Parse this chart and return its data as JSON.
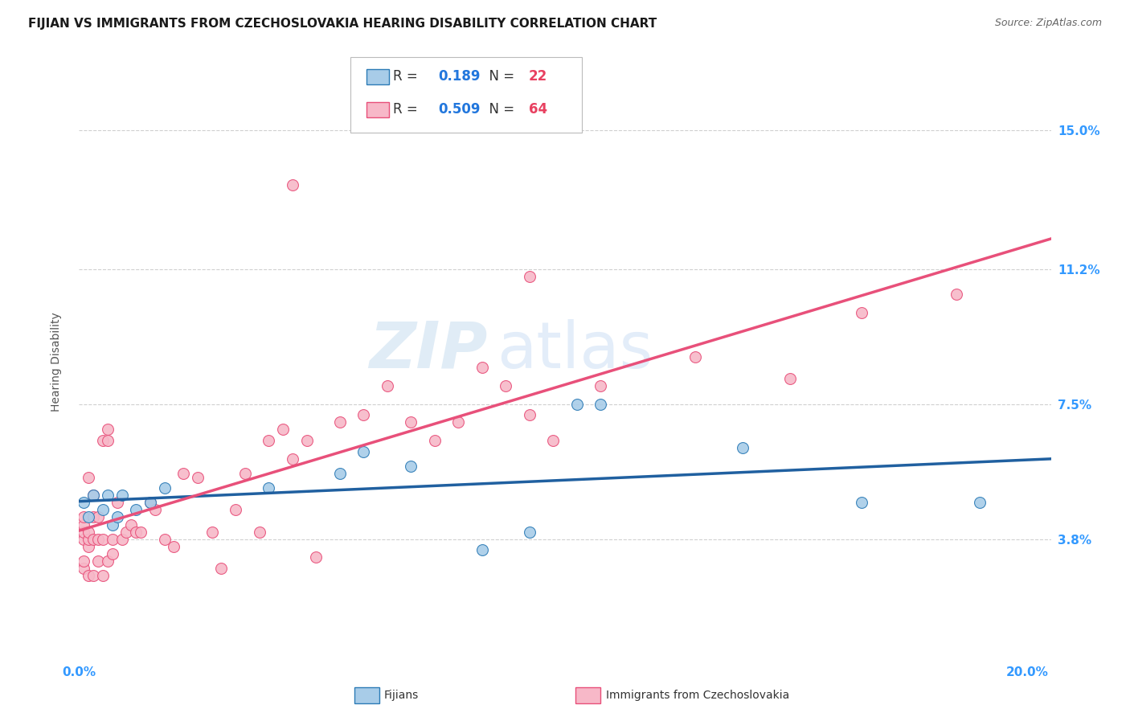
{
  "title": "FIJIAN VS IMMIGRANTS FROM CZECHOSLOVAKIA HEARING DISABILITY CORRELATION CHART",
  "source": "Source: ZipAtlas.com",
  "ylabel": "Hearing Disability",
  "xlim": [
    0.0,
    0.205
  ],
  "ylim": [
    0.005,
    0.168
  ],
  "yticks": [
    0.038,
    0.075,
    0.112,
    0.15
  ],
  "yticklabels": [
    "3.8%",
    "7.5%",
    "11.2%",
    "15.0%"
  ],
  "xtick_positions": [
    0.0,
    0.05,
    0.1,
    0.15,
    0.2
  ],
  "xtick_labels_show": [
    "0.0%",
    "",
    "",
    "",
    "20.0%"
  ],
  "color_fijian_fill": "#a8cce8",
  "color_fijian_edge": "#2c7bb6",
  "color_czech_fill": "#f7b8c8",
  "color_czech_edge": "#e8507a",
  "color_fijian_line": "#2060a0",
  "color_czech_line": "#e8507a",
  "tick_color": "#3399ff",
  "grid_color": "#d0d0d0",
  "background_color": "#ffffff",
  "title_fontsize": 11,
  "axis_label_fontsize": 10,
  "tick_fontsize": 11,
  "legend_fontsize": 12,
  "fijian_x": [
    0.001,
    0.002,
    0.003,
    0.005,
    0.006,
    0.007,
    0.008,
    0.009,
    0.012,
    0.015,
    0.018,
    0.04,
    0.055,
    0.06,
    0.07,
    0.085,
    0.095,
    0.105,
    0.11,
    0.14,
    0.165,
    0.19
  ],
  "fijian_y": [
    0.048,
    0.044,
    0.05,
    0.046,
    0.05,
    0.042,
    0.044,
    0.05,
    0.046,
    0.048,
    0.052,
    0.052,
    0.056,
    0.062,
    0.058,
    0.035,
    0.04,
    0.075,
    0.075,
    0.063,
    0.048,
    0.048
  ],
  "czech_x": [
    0.001,
    0.001,
    0.001,
    0.001,
    0.001,
    0.001,
    0.002,
    0.002,
    0.002,
    0.002,
    0.002,
    0.003,
    0.003,
    0.003,
    0.003,
    0.004,
    0.004,
    0.004,
    0.005,
    0.005,
    0.005,
    0.006,
    0.006,
    0.006,
    0.007,
    0.007,
    0.008,
    0.009,
    0.01,
    0.011,
    0.012,
    0.013,
    0.015,
    0.016,
    0.018,
    0.02,
    0.022,
    0.025,
    0.028,
    0.03,
    0.033,
    0.035,
    0.038,
    0.04,
    0.043,
    0.045,
    0.048,
    0.05,
    0.055,
    0.06,
    0.065,
    0.07,
    0.075,
    0.08,
    0.085,
    0.09,
    0.095,
    0.1,
    0.11,
    0.13,
    0.15,
    0.165,
    0.185,
    0.045,
    0.095
  ],
  "czech_y": [
    0.038,
    0.04,
    0.042,
    0.044,
    0.03,
    0.032,
    0.036,
    0.038,
    0.04,
    0.055,
    0.028,
    0.038,
    0.044,
    0.05,
    0.028,
    0.038,
    0.044,
    0.032,
    0.038,
    0.065,
    0.028,
    0.032,
    0.065,
    0.068,
    0.034,
    0.038,
    0.048,
    0.038,
    0.04,
    0.042,
    0.04,
    0.04,
    0.048,
    0.046,
    0.038,
    0.036,
    0.056,
    0.055,
    0.04,
    0.03,
    0.046,
    0.056,
    0.04,
    0.065,
    0.068,
    0.06,
    0.065,
    0.033,
    0.07,
    0.072,
    0.08,
    0.07,
    0.065,
    0.07,
    0.085,
    0.08,
    0.072,
    0.065,
    0.08,
    0.088,
    0.082,
    0.1,
    0.105,
    0.135,
    0.11
  ]
}
